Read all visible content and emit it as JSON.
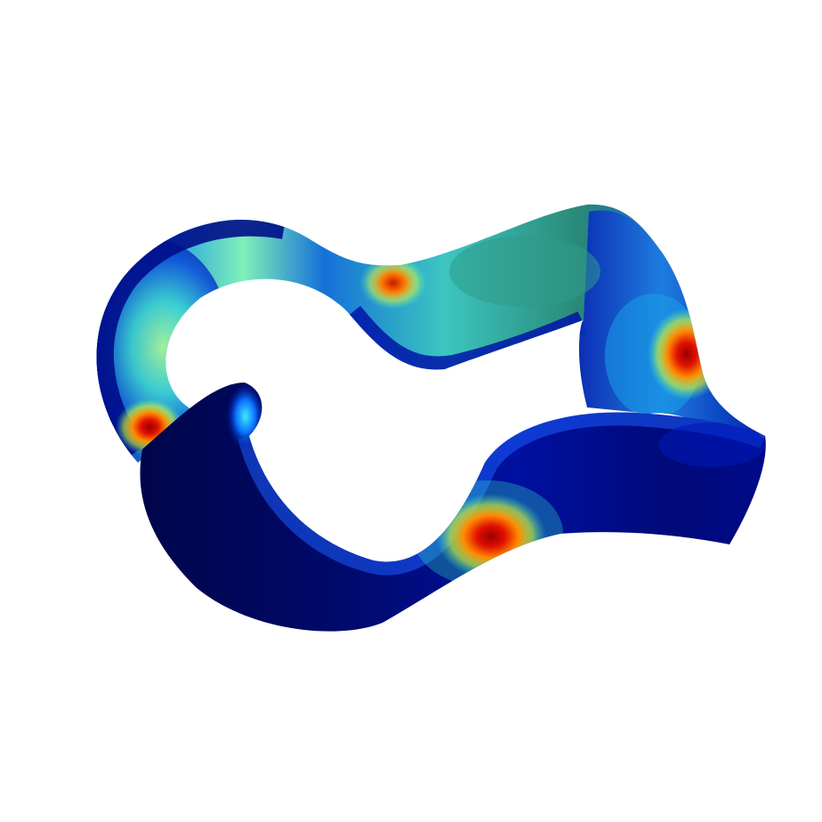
{
  "scene": {
    "subject": "twisted-toroidal-ribbon-surface",
    "background_color": "#ffffff",
    "colormap": "jet",
    "colormap_stops": [
      "#00004a",
      "#0000a8",
      "#0040ff",
      "#00c0ff",
      "#40ffc0",
      "#c0ff40",
      "#ffc000",
      "#ff4000",
      "#a80000"
    ],
    "hotspot_count": 4,
    "hotspot_color": "#b40000"
  }
}
